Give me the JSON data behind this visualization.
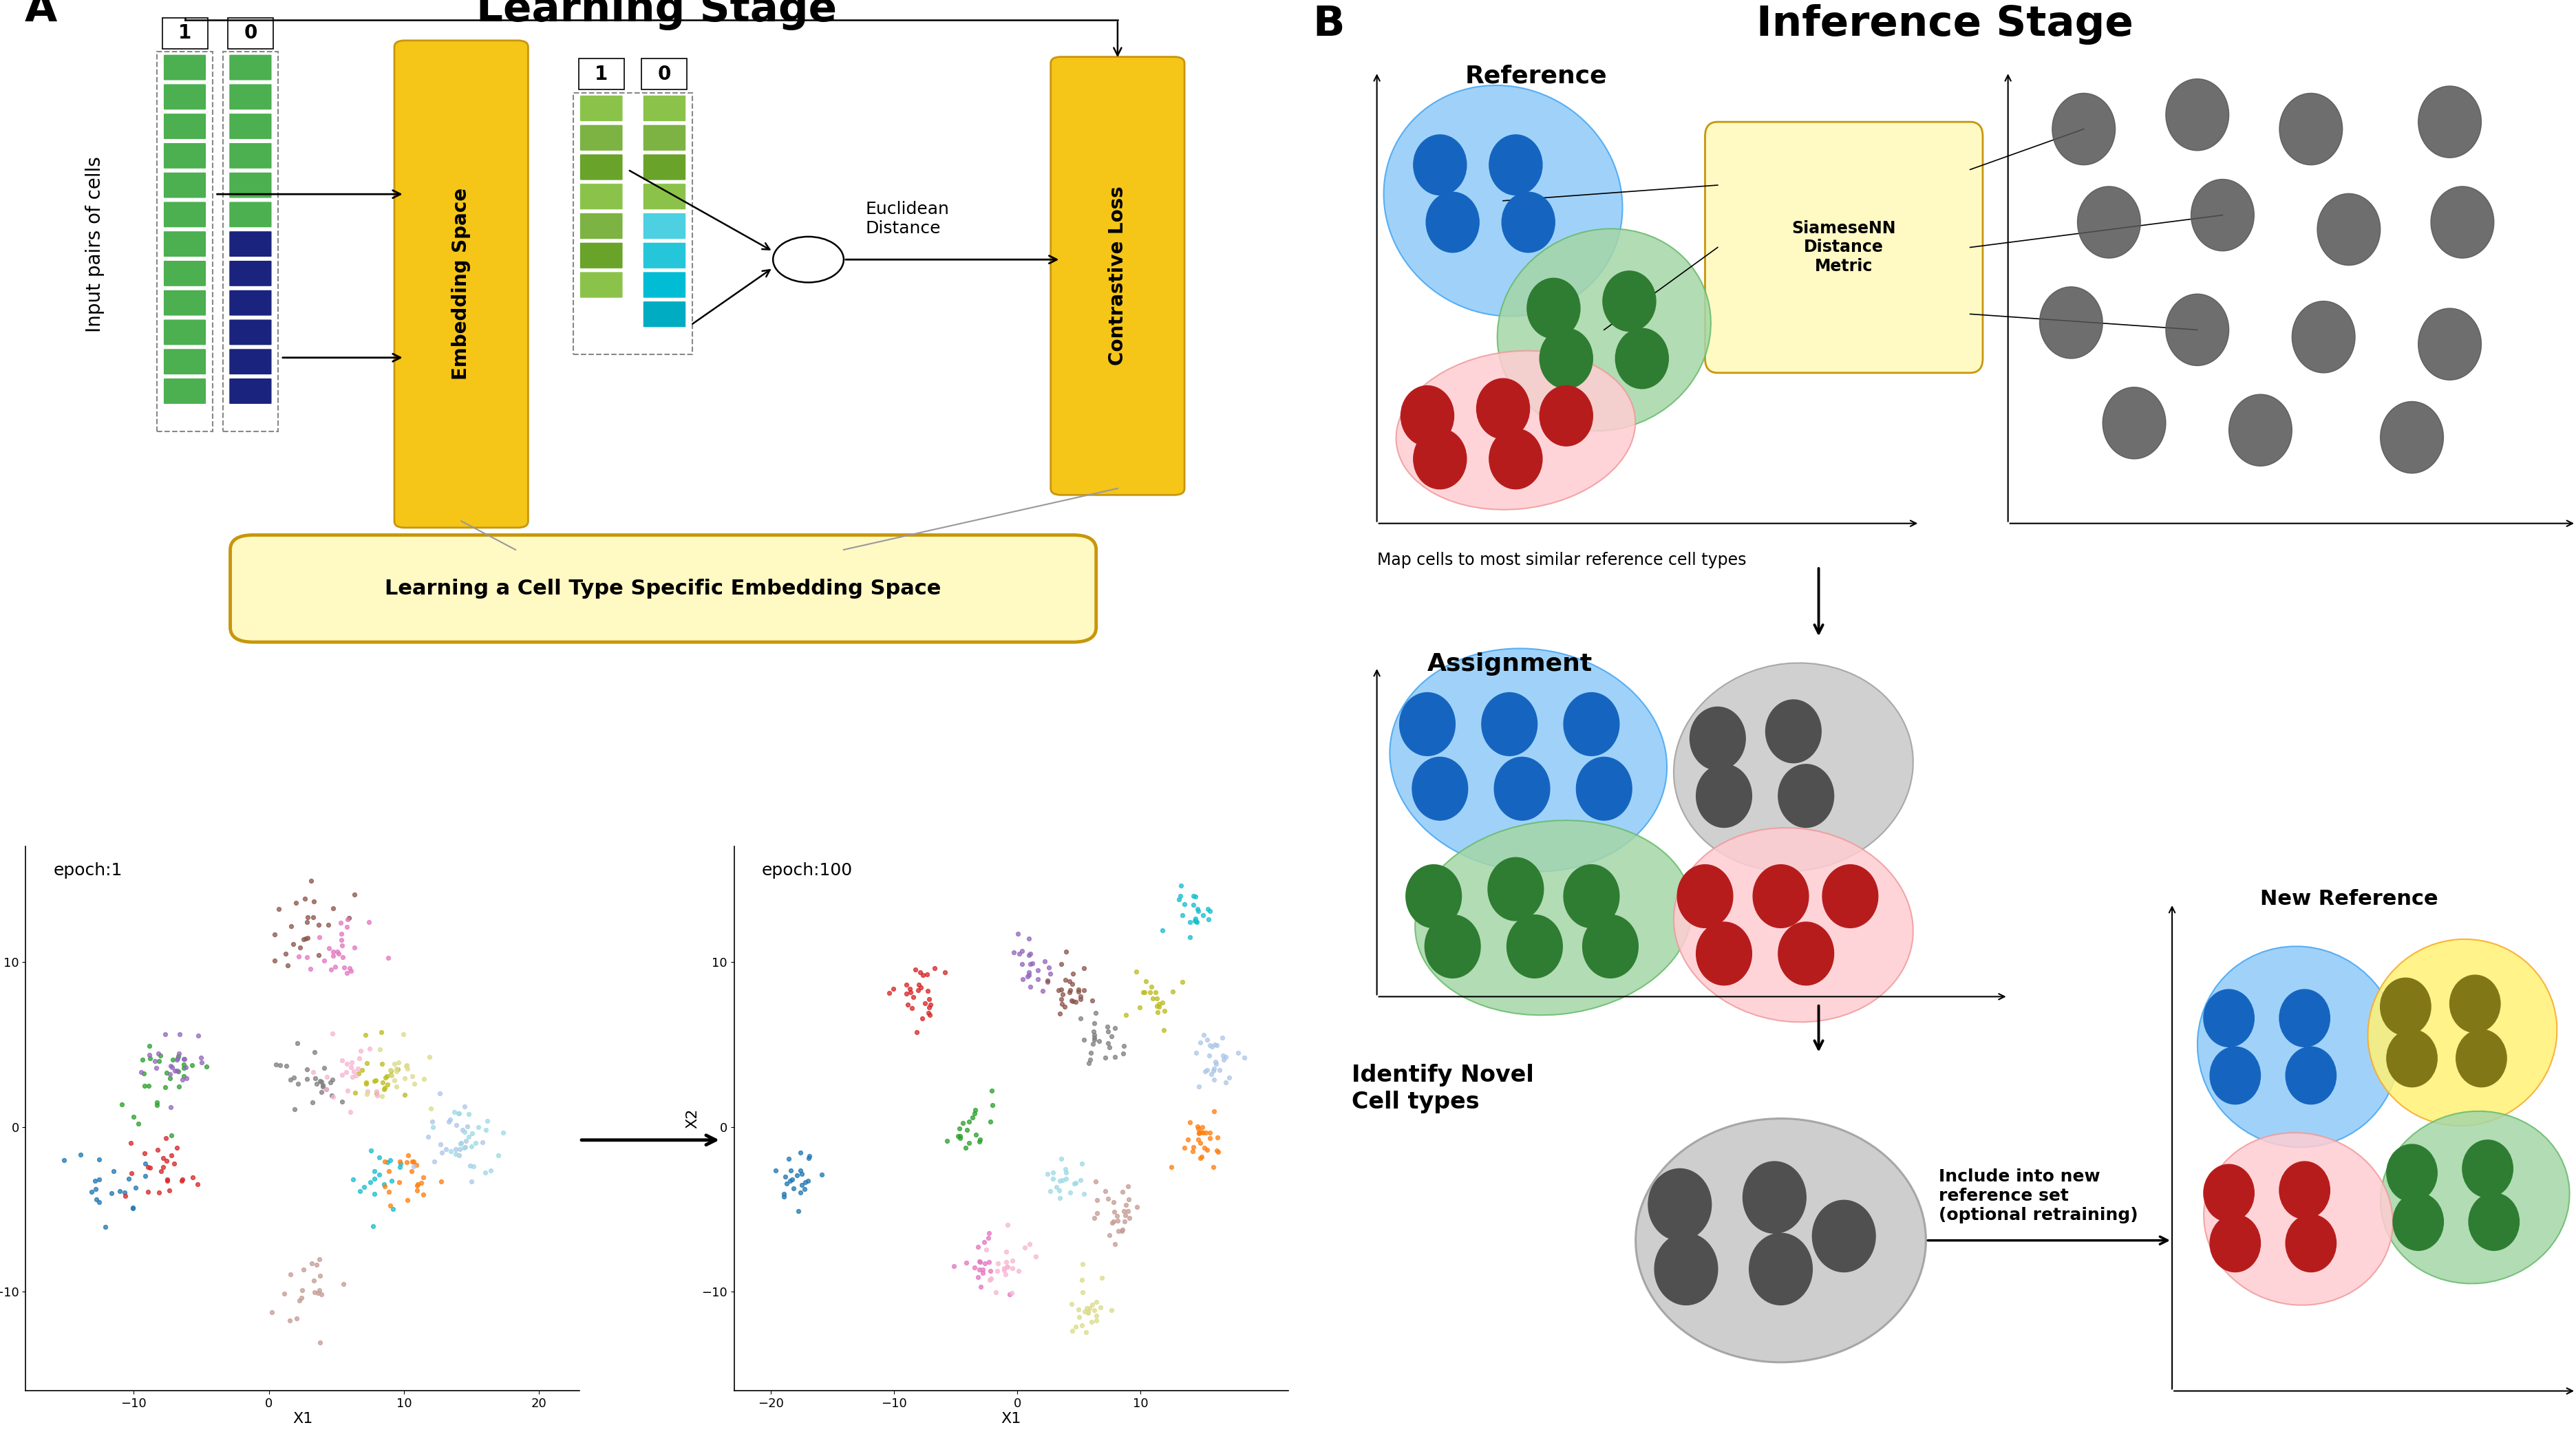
{
  "title_A": "Learning Stage",
  "title_B": "Inference Stage",
  "label_A": "A",
  "label_B": "B",
  "green_dark": "#3A8C3A",
  "green_mid": "#4CAF50",
  "green_light": "#8BC34A",
  "blue_dark": "#1A237E",
  "blue_cell": "#1565C0",
  "blue_blob_fill": "#90CAF9",
  "blue_blob_edge": "#42A5F5",
  "cyan_cell": "#26C6DA",
  "yellow_box": "#F5C518",
  "yellow_light": "#FFF9C4",
  "yellow_edge": "#C8960C",
  "gray_blob_fill": "#C8C8C8",
  "gray_blob_edge": "#9E9E9E",
  "gray_cell": "#505050",
  "green_blob_fill": "#A5D6A7",
  "green_blob_edge": "#66BB6A",
  "green_cell": "#2E7D32",
  "red_blob_fill": "#FFCDD2",
  "red_blob_edge": "#EF9A9A",
  "red_cell": "#B71C1C",
  "yellow_blob_fill": "#FFF176",
  "yellow_blob_edge": "#F9A825",
  "yellow_cell": "#827717",
  "embedding_label": "Embedding Space",
  "contrastive_label": "Contrastive Loss",
  "euclidean_label": "Euclidean\nDistance",
  "learning_label": "Learning a Cell Type Specific Embedding Space",
  "input_label": "Input pairs of cells",
  "epoch1_label": "epoch:1",
  "epoch100_label": "epoch:100",
  "reference_label": "Reference",
  "assignment_label": "Assignment",
  "novel_label": "Identify Novel\nCell types",
  "new_ref_label": "New Reference",
  "siamese_label": "SiameseNN\nDistance\nMetric",
  "map_label": "Map cells to most similar reference cell types",
  "include_label": "Include into new\nreference set\n(optional retraining)"
}
